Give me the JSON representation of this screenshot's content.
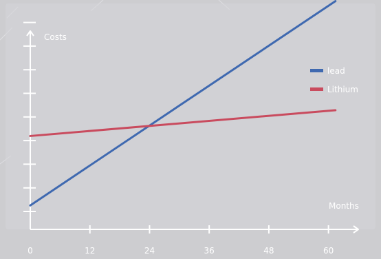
{
  "chart_data": {
    "type": "line",
    "title": "",
    "xlabel": "Months",
    "ylabel": "Costs",
    "x_ticks": [
      0,
      12,
      24,
      36,
      48,
      60
    ],
    "x_tick_labels": [
      "0",
      "12",
      "24",
      "36",
      "48",
      "60"
    ],
    "xlim": [
      0,
      66
    ],
    "ylim": [
      0,
      10
    ],
    "grid": false,
    "legend": "top-right",
    "series": [
      {
        "name": "lead",
        "color": "#3f69b0",
        "x": [
          0,
          61.4
        ],
        "y": [
          0.2,
          10.5
        ]
      },
      {
        "name": "Lithium",
        "color": "#c94b5e",
        "x": [
          0,
          61.4
        ],
        "y": [
          3.7,
          5.0
        ]
      }
    ]
  }
}
